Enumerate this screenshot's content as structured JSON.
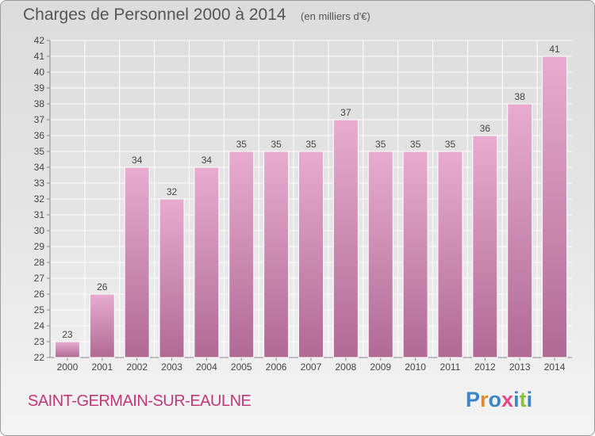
{
  "header": {
    "title": "Charges de Personnel 2000 à 2014",
    "subtitle": "(en milliers d'€)"
  },
  "footer": {
    "commune": "SAINT-GERMAIN-SUR-EAULNE",
    "logo": {
      "text": "Proxiti",
      "letters": [
        "P",
        "r",
        "o",
        "x",
        "i",
        "t",
        "i"
      ],
      "colors": [
        "#3d86c6",
        "#e08a2a",
        "#3d86c6",
        "#e04a8a",
        "#3d86c6",
        "#8abf3a",
        "#3d86c6"
      ]
    }
  },
  "colors": {
    "bar_top": "#e8acd0",
    "bar_bottom": "#b06a94",
    "axis": "#888888",
    "grid": "#ffffff",
    "label": "#444444"
  },
  "chart_data": {
    "type": "bar",
    "categories": [
      "2000",
      "2001",
      "2002",
      "2003",
      "2004",
      "2005",
      "2006",
      "2007",
      "2008",
      "2009",
      "2010",
      "2011",
      "2012",
      "2013",
      "2014"
    ],
    "values": [
      23,
      26,
      34,
      32,
      34,
      35,
      35,
      35,
      37,
      35,
      35,
      35,
      36,
      38,
      41
    ],
    "data_labels": [
      "23",
      "26",
      "34",
      "32",
      "34",
      "35",
      "35",
      "35",
      "37",
      "35",
      "35",
      "35",
      "36",
      "38",
      "41"
    ],
    "yticks": [
      "22",
      "23",
      "24",
      "25",
      "26",
      "27",
      "28",
      "29",
      "30",
      "31",
      "32",
      "33",
      "34",
      "35",
      "36",
      "37",
      "38",
      "39",
      "40",
      "41",
      "42"
    ],
    "ylim": [
      22,
      42
    ],
    "grid": true,
    "legend": "none"
  }
}
